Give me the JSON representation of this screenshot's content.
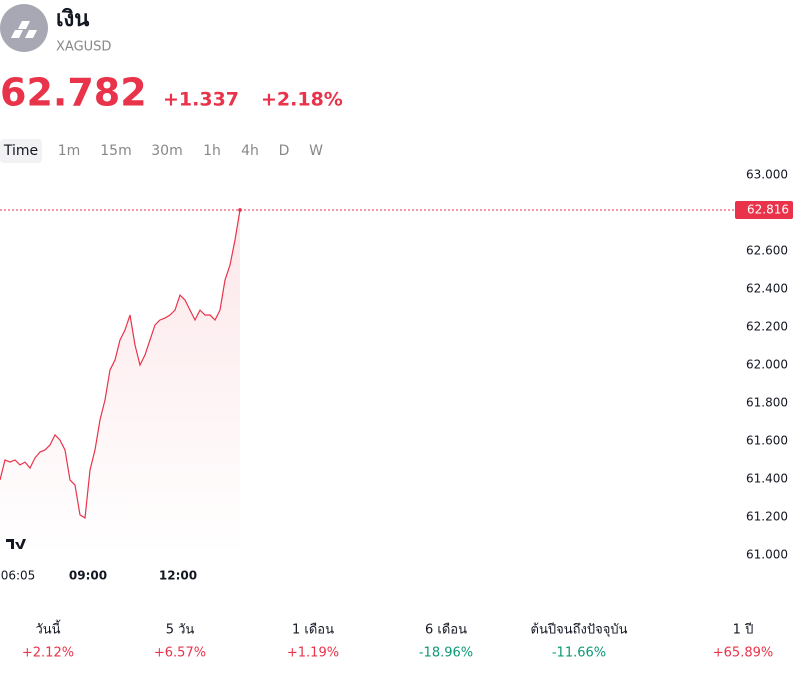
{
  "header": {
    "title": "เงิน",
    "symbol": "XAGUSD",
    "price": "62.782",
    "change": "+1.337",
    "change_percent": "+2.18%",
    "timeframes": [
      "Time",
      "1m",
      "15m",
      "30m",
      "1h",
      "4h",
      "D",
      "W"
    ]
  },
  "chart_data": {
    "type": "line",
    "x": [
      364,
      374,
      384,
      394,
      404,
      414,
      424,
      434,
      444,
      454,
      464,
      474,
      484,
      494,
      504,
      514,
      524,
      534,
      544,
      554,
      564,
      574,
      584,
      594,
      604,
      614,
      624,
      634,
      644,
      654,
      664,
      674,
      684,
      694,
      704,
      714,
      724,
      734,
      744,
      754,
      764,
      774,
      784,
      794,
      804,
      814,
      824,
      834,
      844
    ],
    "series": [
      {
        "name": "XAGUSD",
        "color": "#e8334a",
        "values": [
          61.395,
          61.5,
          61.489,
          61.5,
          61.474,
          61.489,
          61.458,
          61.511,
          61.542,
          61.553,
          61.579,
          61.632,
          61.605,
          61.553,
          61.395,
          61.368,
          61.211,
          61.195,
          61.447,
          61.553,
          61.711,
          61.816,
          61.974,
          62.026,
          62.132,
          62.184,
          62.263,
          62.105,
          62.0,
          62.053,
          62.132,
          62.211,
          62.237,
          62.247,
          62.263,
          62.289,
          62.368,
          62.342,
          62.289,
          62.237,
          62.289,
          62.263,
          62.263,
          62.237,
          62.289,
          62.447,
          62.526,
          62.658,
          62.816
        ]
      }
    ],
    "xlim": [
      364,
      1830
    ],
    "xticks": [
      {
        "value": 365,
        "label": "06:05"
      },
      {
        "value": 540,
        "label": "09:00"
      },
      {
        "value": 720,
        "label": "12:00"
      }
    ],
    "ylim": [
      61.0,
      63.0
    ],
    "yticks": [
      {
        "value": 63,
        "label": "63.000"
      },
      {
        "value": 62.6,
        "label": "62.600"
      },
      {
        "value": 62.4,
        "label": "62.400"
      },
      {
        "value": 62.2,
        "label": "62.200"
      },
      {
        "value": 62,
        "label": "62.000"
      },
      {
        "value": 61.8,
        "label": "61.800"
      },
      {
        "value": 61.6,
        "label": "61.600"
      },
      {
        "value": 61.4,
        "label": "61.400"
      },
      {
        "value": 61.2,
        "label": "61.200"
      },
      {
        "value": 61,
        "label": "61.000"
      }
    ],
    "last_price": 62.816
  },
  "performance": [
    {
      "label": "วันนี้",
      "value": "+2.12%",
      "color": "#e8334a"
    },
    {
      "label": "5 วัน",
      "value": "+6.57%",
      "color": "#e8334a"
    },
    {
      "label": "1 เดือน",
      "value": "+1.19%",
      "color": "#e8334a"
    },
    {
      "label": "6 เดือน",
      "value": "-18.96%",
      "color": "#0a9a74"
    },
    {
      "label": "ต้นปีจนถึงปัจจุบัน",
      "value": "-11.66%",
      "color": "#0a9a74"
    },
    {
      "label": "1 ปี",
      "value": "+65.89%",
      "color": "#e8334a"
    }
  ]
}
